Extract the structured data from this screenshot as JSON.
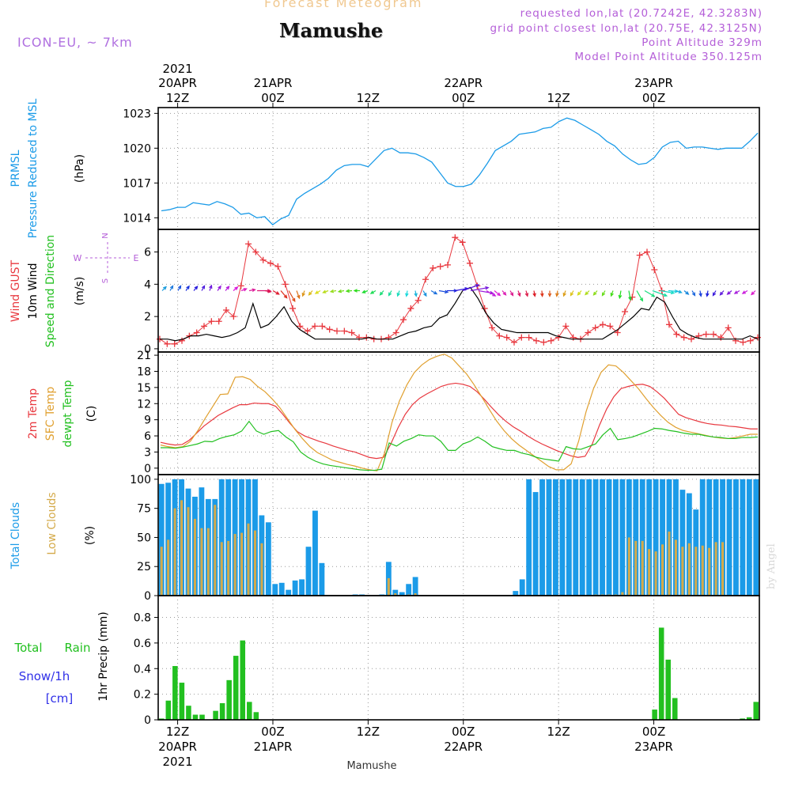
{
  "header": {
    "chart_type": "Forecast Meteogram",
    "location": "Mamushe",
    "model": "ICON-EU, ~ 7km",
    "requested": "requested lon,lat (20.7242E, 42.3283N)",
    "gridpoint": "grid point closest lon,lat (20.75E, 42.3125N)",
    "point_alt": "Point Altitude 329m",
    "model_alt": "Model Point Altitude 350.125m",
    "bottom_label": "Mamushe",
    "credit": "by Angel"
  },
  "colors": {
    "pressure": "#1b9be8",
    "gust": "#e8383f",
    "wind": "#000000",
    "temp2m": "#e8383f",
    "sfc": "#e0a030",
    "dewpt": "#22c020",
    "total_clouds": "#1b9be8",
    "low_clouds": "#d4aa4a",
    "rain": "#22c020",
    "snow": "#3030e8",
    "compass": "#b45ed8"
  },
  "chart_data": [
    {
      "id": "pressure",
      "type": "line",
      "title": "PRMSL Pressure Reduced to MSL",
      "ylabel": [
        "PRMSL",
        "Pressure Reduced to MSL"
      ],
      "unit": "(hPa)",
      "ylim": [
        1013,
        1023.5
      ],
      "yticks": [
        1014,
        1017,
        1020,
        1023
      ],
      "values": [
        1014.6,
        1014.7,
        1014.9,
        1014.9,
        1015.3,
        1015.2,
        1015.1,
        1015.4,
        1015.2,
        1014.9,
        1014.3,
        1014.4,
        1014.0,
        1014.1,
        1013.4,
        1013.9,
        1014.2,
        1015.6,
        1016.1,
        1016.5,
        1016.9,
        1017.4,
        1018.1,
        1018.5,
        1018.6,
        1018.6,
        1018.4,
        1019.1,
        1019.8,
        1020.0,
        1019.6,
        1019.6,
        1019.5,
        1019.2,
        1018.8,
        1017.9,
        1017.0,
        1016.7,
        1016.7,
        1016.9,
        1017.7,
        1018.7,
        1019.8,
        1020.2,
        1020.6,
        1021.2,
        1021.3,
        1021.4,
        1021.7,
        1021.8,
        1022.3,
        1022.6,
        1022.4,
        1022.0,
        1021.6,
        1021.2,
        1020.6,
        1020.2,
        1019.5,
        1019.0,
        1018.6,
        1018.7,
        1019.2,
        1020.1,
        1020.5,
        1020.6,
        1020.0,
        1020.1,
        1020.1,
        1020.0,
        1019.9,
        1020.0,
        1020.0,
        1020.0,
        1020.6,
        1021.3
      ]
    },
    {
      "id": "wind",
      "type": "line",
      "title": "Wind GUST / 10m Wind Speed and Direction",
      "ylabels": [
        "Wind GUST",
        "10m Wind",
        "Speed and Direction"
      ],
      "unit": "(m/s)",
      "ylim": [
        -0.2,
        7.4
      ],
      "yticks": [
        0,
        2,
        4,
        6
      ],
      "compass": {
        "n": "N",
        "s": "S",
        "w": "W",
        "e": "E"
      },
      "series": [
        {
          "name": "Wind GUST",
          "values": [
            0.6,
            0.3,
            0.3,
            0.5,
            0.8,
            1.0,
            1.4,
            1.7,
            1.7,
            2.4,
            2.0,
            3.9,
            6.5,
            6.0,
            5.5,
            5.3,
            5.1,
            4.0,
            2.5,
            1.4,
            1.1,
            1.4,
            1.4,
            1.2,
            1.1,
            1.1,
            1.0,
            0.7,
            0.7,
            0.6,
            0.6,
            0.7,
            1.0,
            1.8,
            2.5,
            3.0,
            4.3,
            5.0,
            5.1,
            5.2,
            6.9,
            6.6,
            5.3,
            3.9,
            2.5,
            1.3,
            0.8,
            0.7,
            0.4,
            0.7,
            0.7,
            0.5,
            0.4,
            0.5,
            0.7,
            1.4,
            0.7,
            0.6,
            1.0,
            1.3,
            1.5,
            1.4,
            1.0,
            2.3,
            3.2,
            5.8,
            6.0,
            4.9,
            3.6,
            1.5,
            0.9,
            0.7,
            0.6,
            0.8,
            0.9,
            0.9,
            0.7,
            1.3,
            0.5,
            0.4,
            0.5,
            0.7
          ]
        },
        {
          "name": "10m Wind",
          "values": [
            0.6,
            0.6,
            0.5,
            0.6,
            0.8,
            0.8,
            0.9,
            0.8,
            0.7,
            0.8,
            1.0,
            1.3,
            2.8,
            1.3,
            1.5,
            2.0,
            2.6,
            1.7,
            1.2,
            0.9,
            0.6,
            0.6,
            0.6,
            0.6,
            0.6,
            0.6,
            0.6,
            0.7,
            0.6,
            0.6,
            0.6,
            0.8,
            1.0,
            1.1,
            1.3,
            1.4,
            1.9,
            2.1,
            2.8,
            3.6,
            3.8,
            3.1,
            2.2,
            1.6,
            1.2,
            1.1,
            1.0,
            1.0,
            1.0,
            1.0,
            1.0,
            0.8,
            0.7,
            0.6,
            0.6,
            0.6,
            0.6,
            0.6,
            0.9,
            1.2,
            1.6,
            2.0,
            2.5,
            2.4,
            3.2,
            2.9,
            2.0,
            1.2,
            0.9,
            0.7,
            0.6,
            0.6,
            0.6,
            0.6,
            0.6,
            0.6,
            0.8,
            0.6
          ]
        }
      ],
      "direction_deg": [
        225,
        210,
        210,
        215,
        220,
        210,
        200,
        215,
        220,
        230,
        250,
        260,
        270,
        280,
        300,
        320,
        330,
        340,
        20,
        40,
        60,
        70,
        80,
        80,
        85,
        90,
        70,
        60,
        40,
        30,
        20,
        10,
        350,
        330,
        300,
        280,
        270,
        260,
        250,
        260,
        280,
        300,
        310,
        320,
        330,
        340,
        345,
        350,
        355,
        0,
        10,
        20,
        30,
        40,
        45,
        40,
        30,
        20,
        10,
        350,
        330,
        300,
        290,
        280,
        275,
        290,
        310,
        330,
        350,
        10,
        30,
        40,
        50,
        60,
        60,
        45
      ]
    },
    {
      "id": "temp",
      "type": "line",
      "title": "2m Temp / SFC Temp / dewpt Temp",
      "ylabels": [
        "2m Temp",
        "SFC Temp",
        "dewpt Temp"
      ],
      "unit": "(C)",
      "ylim": [
        -1.2,
        21.6
      ],
      "yticks": [
        0,
        3,
        6,
        9,
        12,
        15,
        18,
        21
      ],
      "series": [
        {
          "name": "2m Temp",
          "values": [
            4.8,
            4.5,
            4.3,
            4.4,
            5.2,
            6.5,
            7.8,
            8.8,
            9.8,
            10.5,
            11.2,
            11.8,
            11.8,
            12.1,
            12.0,
            12.0,
            11.5,
            10.0,
            8.3,
            6.8,
            6.0,
            5.5,
            5.0,
            4.6,
            4.1,
            3.7,
            3.3,
            3.0,
            2.5,
            2.0,
            1.8,
            2.0,
            4.5,
            7.5,
            10.0,
            11.8,
            13.0,
            13.8,
            14.5,
            15.2,
            15.6,
            15.8,
            15.6,
            15.2,
            14.2,
            12.8,
            11.3,
            9.9,
            8.7,
            7.7,
            6.9,
            6.0,
            5.2,
            4.5,
            3.9,
            3.3,
            2.8,
            2.3,
            2.0,
            2.2,
            4.5,
            8.0,
            11.0,
            13.3,
            14.8,
            15.2,
            15.5,
            15.6,
            15.2,
            14.2,
            13.0,
            11.5,
            10.0,
            9.4,
            9.0,
            8.6,
            8.3,
            8.1,
            8.0,
            7.8,
            7.7,
            7.5,
            7.3,
            7.3
          ]
        },
        {
          "name": "SFC Temp",
          "values": [
            4.3,
            4.0,
            3.8,
            4.0,
            5.0,
            7.0,
            9.3,
            11.5,
            13.7,
            13.8,
            16.9,
            17.0,
            16.5,
            15.2,
            14.2,
            12.8,
            11.2,
            9.2,
            7.2,
            5.5,
            4.0,
            2.9,
            2.2,
            1.5,
            1.1,
            0.7,
            0.4,
            0.0,
            -0.3,
            -0.5,
            2.8,
            8.5,
            12.5,
            15.5,
            17.8,
            19.2,
            20.2,
            20.8,
            21.2,
            20.5,
            19.0,
            17.5,
            15.5,
            13.3,
            11.0,
            8.8,
            7.0,
            5.5,
            4.3,
            3.3,
            2.3,
            1.3,
            0.3,
            -0.3,
            -0.3,
            0.8,
            5.0,
            10.5,
            14.8,
            17.8,
            19.2,
            19.0,
            17.8,
            16.3,
            14.8,
            13.0,
            11.3,
            9.8,
            8.5,
            7.6,
            7.0,
            6.7,
            6.4,
            6.1,
            5.8,
            5.6,
            5.5,
            5.7,
            6.0,
            6.3,
            6.3
          ]
        },
        {
          "name": "dewpt Temp",
          "values": [
            3.8,
            3.8,
            3.7,
            3.9,
            4.2,
            4.5,
            5.0,
            4.9,
            5.5,
            5.9,
            6.2,
            6.9,
            8.7,
            6.9,
            6.3,
            6.8,
            7.0,
            5.8,
            4.9,
            3.0,
            2.0,
            1.3,
            0.8,
            0.5,
            0.3,
            0.1,
            -0.1,
            -0.3,
            -0.4,
            -0.4,
            -0.2,
            4.7,
            4.1,
            5.0,
            5.5,
            6.2,
            6.0,
            6.0,
            5.0,
            3.3,
            3.3,
            4.5,
            5.0,
            5.8,
            5.0,
            4.0,
            3.6,
            3.3,
            3.3,
            2.8,
            2.5,
            2.0,
            1.7,
            1.5,
            1.3,
            4.0,
            3.6,
            3.5,
            4.0,
            4.5,
            6.2,
            7.4,
            5.3,
            5.5,
            5.8,
            6.3,
            6.8,
            7.4,
            7.3,
            7.0,
            6.8,
            6.5,
            6.3,
            6.3,
            6.0,
            5.8,
            5.7,
            5.5,
            5.5,
            5.7,
            5.7,
            5.8
          ]
        }
      ]
    },
    {
      "id": "clouds",
      "type": "bar",
      "title": "Total Clouds / Low Clouds",
      "ylabels": [
        "Total Clouds",
        "Low Clouds"
      ],
      "unit": "(%)",
      "ylim": [
        0,
        104
      ],
      "yticks": [
        0,
        25,
        50,
        75,
        100
      ],
      "series": [
        {
          "name": "Total Clouds",
          "values": [
            96,
            97,
            100,
            100,
            92,
            85,
            93,
            83,
            83,
            100,
            100,
            100,
            100,
            100,
            100,
            69,
            63,
            10,
            11,
            5,
            13,
            14,
            42,
            73,
            28,
            0,
            0,
            0,
            0,
            1,
            1,
            0,
            0,
            1,
            29,
            5,
            3,
            10,
            16,
            0,
            0,
            0,
            0,
            0,
            0,
            0,
            0,
            0,
            0,
            0,
            0,
            0,
            0,
            4,
            14,
            100,
            89,
            100,
            100,
            100,
            100,
            100,
            100,
            100,
            100,
            100,
            100,
            100,
            100,
            100,
            100,
            100,
            100,
            100,
            100,
            100,
            100,
            100,
            91,
            88,
            74,
            100,
            100,
            100,
            100,
            100,
            100,
            100,
            100,
            100
          ]
        },
        {
          "name": "Low Clouds",
          "values": [
            42,
            48,
            75,
            82,
            76,
            66,
            58,
            58,
            78,
            46,
            47,
            53,
            54,
            62,
            56,
            45,
            0,
            0,
            0,
            0,
            0,
            0,
            0,
            0,
            0,
            0,
            0,
            0,
            0,
            0,
            0,
            0,
            0,
            0,
            15,
            2,
            0,
            1,
            2,
            0,
            0,
            0,
            0,
            0,
            0,
            0,
            0,
            0,
            0,
            0,
            0,
            0,
            0,
            0,
            0,
            0,
            0,
            0,
            0,
            0,
            0,
            0,
            0,
            0,
            0,
            1,
            1,
            1,
            1,
            3,
            50,
            47,
            47,
            40,
            38,
            44,
            55,
            48,
            42,
            45,
            42,
            43,
            41,
            46,
            46
          ]
        }
      ]
    },
    {
      "id": "precip",
      "type": "bar",
      "title": "1hr Precip (mm)",
      "ylabel": "1hr Precip (mm)",
      "left_labels": [
        "Total",
        "Rain",
        "Snow/1h",
        "[cm]"
      ],
      "ylim": [
        0,
        0.97
      ],
      "yticks": [
        "0",
        "0.2",
        "0.4",
        "0.6",
        "0.8"
      ],
      "ytick_values": [
        0,
        0.2,
        0.4,
        0.6,
        0.8
      ],
      "series": [
        {
          "name": "Rain",
          "values": [
            0.01,
            0.15,
            0.42,
            0.29,
            0.11,
            0.04,
            0.04,
            0.0,
            0.07,
            0.13,
            0.31,
            0.5,
            0.62,
            0.14,
            0.06,
            0.0,
            0.0,
            0.0,
            0.0,
            0.0,
            0.0,
            0.0,
            0.0,
            0.0,
            0.0,
            0.0,
            0.0,
            0.0,
            0.0,
            0.0,
            0.0,
            0.0,
            0.0,
            0.0,
            0.0,
            0.0,
            0.0,
            0.0,
            0.0,
            0.0,
            0.0,
            0.0,
            0.0,
            0.0,
            0.0,
            0.0,
            0.0,
            0.0,
            0.0,
            0.0,
            0.0,
            0.0,
            0.0,
            0.0,
            0.0,
            0.0,
            0.0,
            0.0,
            0.0,
            0.0,
            0.0,
            0.0,
            0.0,
            0.0,
            0.0,
            0.0,
            0.0,
            0.0,
            0.0,
            0.0,
            0.0,
            0.0,
            0.0,
            0.08,
            0.72,
            0.47,
            0.17,
            0.0,
            0.0,
            0.0,
            0.0,
            0.0,
            0.0,
            0.0,
            0.0,
            0.0,
            0.01,
            0.02,
            0.14
          ]
        }
      ]
    }
  ],
  "time_axis": {
    "top_year": "2021",
    "labels": [
      {
        "time": "12Z",
        "date": "20APR",
        "year": "2021"
      },
      {
        "time": "00Z",
        "date": "21APR",
        "year": ""
      },
      {
        "time": "12Z",
        "date": "",
        "year": ""
      },
      {
        "time": "00Z",
        "date": "22APR",
        "year": ""
      },
      {
        "time": "12Z",
        "date": "",
        "year": ""
      },
      {
        "time": "00Z",
        "date": "23APR",
        "year": ""
      }
    ]
  }
}
